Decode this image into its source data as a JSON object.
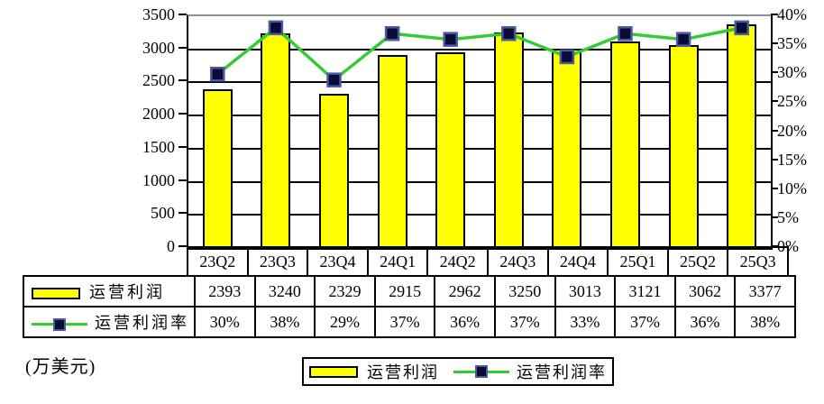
{
  "chart_data": {
    "type": "bar",
    "subtype": "combo-bar-line",
    "title": "",
    "unit_label": "(万美元)",
    "legend_position": "bottom",
    "grid": "horizontal gridlines at left-axis 500 intervals",
    "categories": [
      "23Q2",
      "23Q3",
      "23Q4",
      "24Q1",
      "24Q2",
      "24Q3",
      "24Q4",
      "25Q1",
      "25Q2",
      "25Q3"
    ],
    "series": [
      {
        "name": "运营利润",
        "type": "bar",
        "axis": "left",
        "color": "#ffff00",
        "border_color": "#000000",
        "values": [
          2393,
          3240,
          2329,
          2915,
          2962,
          3250,
          3013,
          3121,
          3062,
          3377
        ]
      },
      {
        "name": "运营利润率",
        "type": "line",
        "axis": "right",
        "color": "#33cc33",
        "marker_color": "#0b0b38",
        "marker_border_color": "#4a5a9a",
        "values": [
          30,
          38,
          29,
          37,
          36,
          37,
          33,
          37,
          36,
          38
        ],
        "value_labels": [
          "30%",
          "38%",
          "29%",
          "37%",
          "36%",
          "37%",
          "33%",
          "37%",
          "36%",
          "38%"
        ]
      }
    ],
    "left_axis": {
      "min": 0,
      "max": 3500,
      "step": 500,
      "tick_labels": [
        "0",
        "500",
        "1000",
        "1500",
        "2000",
        "2500",
        "3000",
        "3500"
      ]
    },
    "right_axis": {
      "min": 0,
      "max": 40,
      "step": 5,
      "tick_labels": [
        "0%",
        "5%",
        "10%",
        "15%",
        "20%",
        "25%",
        "30%",
        "35%",
        "40%"
      ]
    }
  }
}
